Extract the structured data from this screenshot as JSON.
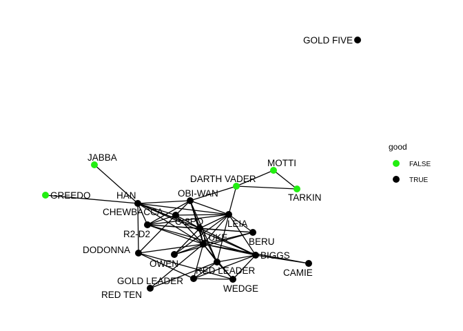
{
  "network": {
    "nodes": [
      {
        "id": "GOLD FIVE",
        "good": "TRUE"
      },
      {
        "id": "JABBA",
        "good": "FALSE"
      },
      {
        "id": "MOTTI",
        "good": "FALSE"
      },
      {
        "id": "DARTH VADER",
        "good": "FALSE"
      },
      {
        "id": "TARKIN",
        "good": "FALSE"
      },
      {
        "id": "GREEDO",
        "good": "FALSE"
      },
      {
        "id": "HAN",
        "good": "TRUE"
      },
      {
        "id": "OBI-WAN",
        "good": "TRUE"
      },
      {
        "id": "CHEWBACCA",
        "good": "TRUE"
      },
      {
        "id": "C-3PO",
        "good": "TRUE"
      },
      {
        "id": "LEIA",
        "good": "TRUE"
      },
      {
        "id": "R2-D2",
        "good": "TRUE"
      },
      {
        "id": "LUKE",
        "good": "TRUE"
      },
      {
        "id": "BERU",
        "good": "TRUE"
      },
      {
        "id": "DODONNA",
        "good": "TRUE"
      },
      {
        "id": "OWEN",
        "good": "TRUE"
      },
      {
        "id": "BIGGS",
        "good": "TRUE"
      },
      {
        "id": "RED LEADER",
        "good": "TRUE"
      },
      {
        "id": "CAMIE",
        "good": "TRUE"
      },
      {
        "id": "GOLD LEADER",
        "good": "TRUE"
      },
      {
        "id": "WEDGE",
        "good": "TRUE"
      },
      {
        "id": "RED TEN",
        "good": "TRUE"
      }
    ],
    "edges": [
      [
        "JABBA",
        "HAN"
      ],
      [
        "GREEDO",
        "HAN"
      ],
      [
        "MOTTI",
        "DARTH VADER"
      ],
      [
        "MOTTI",
        "TARKIN"
      ],
      [
        "DARTH VADER",
        "TARKIN"
      ],
      [
        "DARTH VADER",
        "LEIA"
      ],
      [
        "DARTH VADER",
        "OBI-WAN"
      ],
      [
        "HAN",
        "CHEWBACCA"
      ],
      [
        "HAN",
        "OBI-WAN"
      ],
      [
        "HAN",
        "C-3PO"
      ],
      [
        "HAN",
        "LEIA"
      ],
      [
        "HAN",
        "R2-D2"
      ],
      [
        "HAN",
        "LUKE"
      ],
      [
        "HAN",
        "BIGGS"
      ],
      [
        "HAN",
        "DODONNA"
      ],
      [
        "OBI-WAN",
        "CHEWBACCA"
      ],
      [
        "OBI-WAN",
        "C-3PO"
      ],
      [
        "OBI-WAN",
        "LEIA"
      ],
      [
        "OBI-WAN",
        "R2-D2"
      ],
      [
        "OBI-WAN",
        "LUKE"
      ],
      [
        "OBI-WAN",
        "RED LEADER"
      ],
      [
        "CHEWBACCA",
        "C-3PO"
      ],
      [
        "CHEWBACCA",
        "LEIA"
      ],
      [
        "CHEWBACCA",
        "R2-D2"
      ],
      [
        "CHEWBACCA",
        "LUKE"
      ],
      [
        "CHEWBACCA",
        "DODONNA"
      ],
      [
        "C-3PO",
        "LEIA"
      ],
      [
        "C-3PO",
        "R2-D2"
      ],
      [
        "C-3PO",
        "LUKE"
      ],
      [
        "C-3PO",
        "BERU"
      ],
      [
        "C-3PO",
        "OWEN"
      ],
      [
        "C-3PO",
        "BIGGS"
      ],
      [
        "C-3PO",
        "RED LEADER"
      ],
      [
        "LEIA",
        "R2-D2"
      ],
      [
        "LEIA",
        "LUKE"
      ],
      [
        "LEIA",
        "BERU"
      ],
      [
        "LEIA",
        "BIGGS"
      ],
      [
        "LEIA",
        "RED LEADER"
      ],
      [
        "LEIA",
        "OWEN"
      ],
      [
        "R2-D2",
        "LUKE"
      ],
      [
        "R2-D2",
        "BERU"
      ],
      [
        "R2-D2",
        "BIGGS"
      ],
      [
        "LUKE",
        "BERU"
      ],
      [
        "LUKE",
        "OWEN"
      ],
      [
        "LUKE",
        "BIGGS"
      ],
      [
        "LUKE",
        "RED LEADER"
      ],
      [
        "LUKE",
        "CAMIE"
      ],
      [
        "LUKE",
        "DODONNA"
      ],
      [
        "LUKE",
        "GOLD LEADER"
      ],
      [
        "LUKE",
        "WEDGE"
      ],
      [
        "LUKE",
        "RED TEN"
      ],
      [
        "BERU",
        "OWEN"
      ],
      [
        "BIGGS",
        "CAMIE"
      ],
      [
        "BIGGS",
        "RED LEADER"
      ],
      [
        "BIGGS",
        "WEDGE"
      ],
      [
        "BIGGS",
        "GOLD LEADER"
      ],
      [
        "RED LEADER",
        "WEDGE"
      ],
      [
        "RED LEADER",
        "GOLD LEADER"
      ],
      [
        "GOLD LEADER",
        "WEDGE"
      ],
      [
        "DODONNA",
        "GOLD LEADER"
      ],
      [
        "DODONNA",
        "WEDGE"
      ],
      [
        "RED TEN",
        "RED LEADER"
      ]
    ]
  },
  "legend": {
    "title": "good",
    "items": [
      {
        "label": "FALSE",
        "color": "#22ee11"
      },
      {
        "label": "TRUE",
        "color": "#000000"
      }
    ]
  },
  "colors": {
    "FALSE": "#22ee11",
    "TRUE": "#000000",
    "edge": "#000000"
  }
}
